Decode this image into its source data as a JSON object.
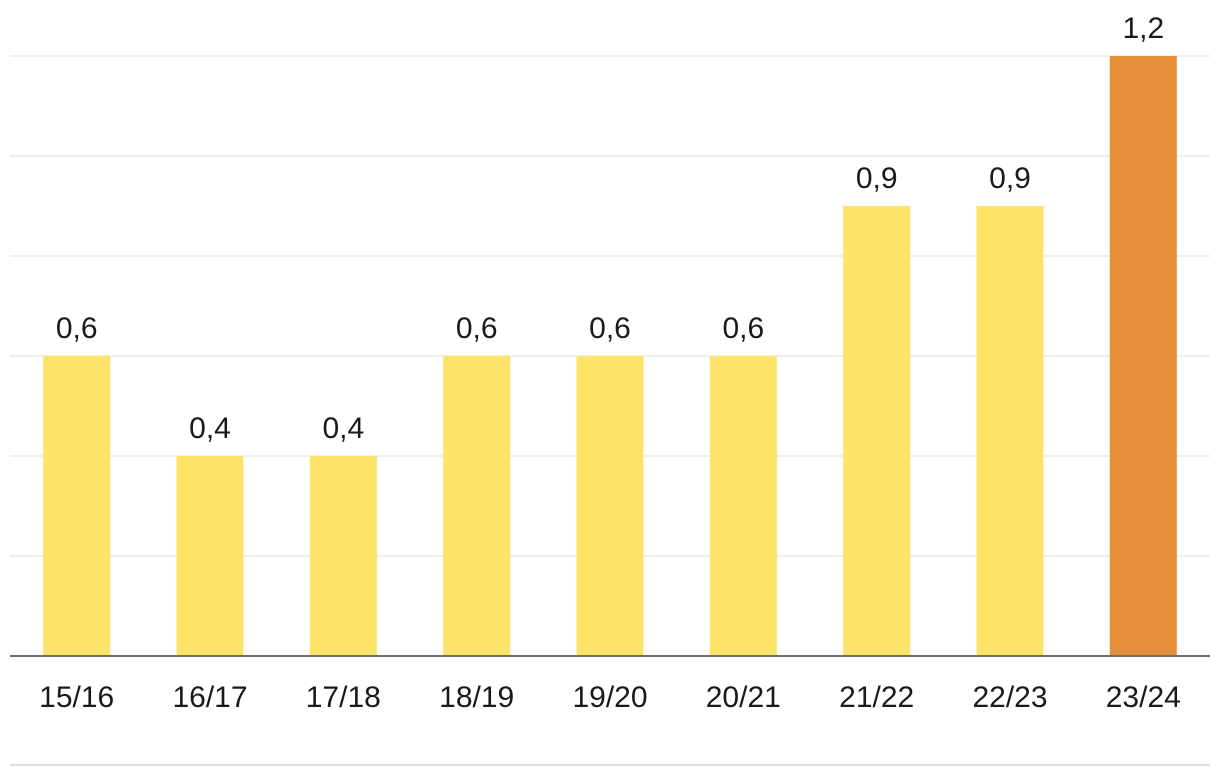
{
  "chart_data": {
    "type": "bar",
    "categories": [
      "15/16",
      "16/17",
      "17/18",
      "18/19",
      "19/20",
      "20/21",
      "21/22",
      "22/23",
      "23/24"
    ],
    "values": [
      0.6,
      0.4,
      0.4,
      0.6,
      0.6,
      0.6,
      0.9,
      0.9,
      1.2
    ],
    "value_labels": [
      "0,6",
      "0,4",
      "0,4",
      "0,6",
      "0,6",
      "0,6",
      "0,9",
      "0,9",
      "1,2"
    ],
    "ylim": [
      0,
      1.2
    ],
    "gridline_step": 0.2,
    "grid": true,
    "highlight_index": 8,
    "colors": {
      "bar": "#fde367",
      "highlight": "#e68d38",
      "grid": "#dcdcdc",
      "axis": "#6e6e6e",
      "text": "#1a1a1a"
    }
  }
}
